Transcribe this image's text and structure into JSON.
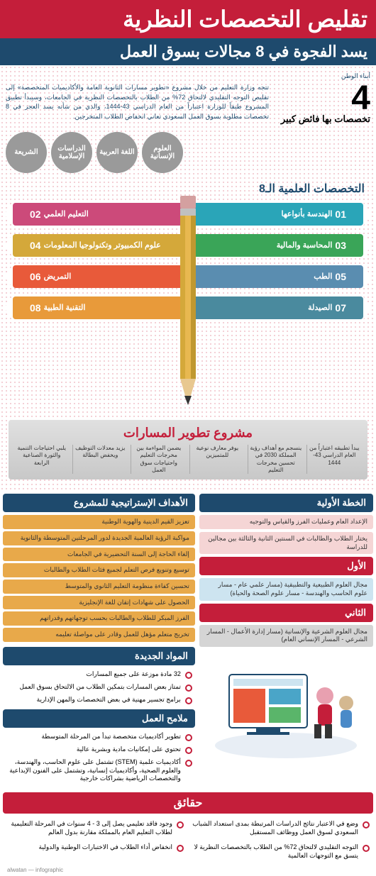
{
  "header": {
    "title_red": "تقليص التخصصات النظرية",
    "title_blue": "يسد الفجوة في 8 مجالات بسوق العمل",
    "source": "أبناء الوطن"
  },
  "intro": {
    "text": "تتجه وزارة التعليم من خلال مشروع «تطوير مسارات الثانوية العامة والأكاديميات المتخصصة» إلى تقليص التوجه التقليدي لالتحاق 72% من الطلاب بالتخصصات النظرية في الجامعات، وسيبدأ تطبيق المشروع طبقاً للوزارة اعتباراً من العام الدراسي 43-1444، والذي من شأنه يسد العجز في 8 تخصصات مطلوبة بسوق العمل السعودي تعاني انخفاض الطلاب المتخرجين."
  },
  "surplus": {
    "number": "4",
    "label": "تخصصات بها فائض كبير",
    "circles": [
      "الشريعة",
      "الدراسات الإسلامية",
      "اللغة العربية",
      "العلوم الإنسانية"
    ]
  },
  "specialties": {
    "title": "التخصصات العلمية الـ8",
    "right": [
      {
        "num": "01",
        "label": "الهندسة بأنواعها",
        "color": "#2aa5b8"
      },
      {
        "num": "03",
        "label": "المحاسبة والمالية",
        "color": "#3aa558"
      },
      {
        "num": "05",
        "label": "الطب",
        "color": "#5a8db0"
      },
      {
        "num": "07",
        "label": "الصيدلة",
        "color": "#4a8a9e"
      }
    ],
    "left": [
      {
        "num": "02",
        "label": "التعليم العلمي",
        "color": "#cc4a7a"
      },
      {
        "num": "04",
        "label": "علوم الكمبيوتر وتكنولوجيا المعلومات",
        "color": "#d4a83a"
      },
      {
        "num": "06",
        "label": "التمريض",
        "color": "#e85a3a"
      },
      {
        "num": "08",
        "label": "التقنية الطبية",
        "color": "#e89a3a"
      }
    ]
  },
  "project": {
    "title": "مشروع تطوير المسارات",
    "cells": [
      "يبدأ تطبيقه اعتباراً من العام الدراسي 43-1444",
      "ينسجم مع أهداف رؤية المملكة 2030 في تحسين مخرجات التعليم",
      "يوفر معارف نوعية للمتميزين",
      "يضمن المواءمة بين مخرجات التعليم واحتياجات سوق العمل",
      "يزيد معدلات التوظيف ويخفض البطالة",
      "يلبي احتياجات التنمية والثورة الصناعية الرابعة"
    ]
  },
  "strategic": {
    "title": "الأهداف الإستراتيجية للمشروع",
    "items": [
      "تعزيز القيم الدينية والهوية الوطنية",
      "مواكبة الرؤية العالمية الجديدة لدور المرحلتين المتوسطة والثانوية",
      "إلغاء الحاجة إلى السنة التحضيرية في الجامعات",
      "توسيع وتنويع فرص التعلم لجميع فئات الطلاب والطالبات",
      "تحسين كفاءة منظومة التعليم الثانوي والمتوسط",
      "الحصول على شهادات إتقان للغة الإنجليزية",
      "الفرز المبكر للطلاب والطالبات بحسب توجهاتهم وقدراتهم",
      "تخريج متعلم مؤهل للعمل وقادر على مواصلة تعليمه"
    ]
  },
  "plan": {
    "title": "الخطة الأولية",
    "items": [
      "الإعداد العام وعمليات الفرز والقياس والتوجيه",
      "يختار الطلاب والطالبات في السنتين الثانية والثالثة بين مجالين للدراسة"
    ],
    "first_title": "الأول",
    "first_text": "مجال العلوم الطبيعية والتطبيقية (مسار علمي عام - مسار علوم الحاسب والهندسة - مسار علوم الصحة والحياة)",
    "second_title": "الثاني",
    "second_text": "مجال العلوم الشرعية والإنسانية (مسار إدارة الأعمال - المسار الشرعي - المسار الإنساني العام)"
  },
  "new_subjects": {
    "title": "المواد الجديدة",
    "items": [
      "32 مادة موزعة على جميع المسارات",
      "تمتاز بعض المسارات بتمكين الطلاب من الالتحاق بسوق العمل",
      "برامج تجسير مهنية في بعض التخصصات والمهن الإدارية"
    ]
  },
  "work_features": {
    "title": "ملامح العمل",
    "items": [
      "تطوير أكاديميات متخصصة تبدأ من المرحلة المتوسطة",
      "تحتوي على إمكانيات مادية وبشرية عالية",
      "أكاديميات علمية (STEM) تشتمل على علوم الحاسب، والهندسة، والعلوم الصحية، وأكاديميات إنسانية، وتشتمل على الفنون الإبداعية والتخصصات الرياضية بشراكات خارجية"
    ]
  },
  "facts": {
    "title": "حقائق",
    "items": [
      "وجود فاقد تعليمي يصل إلى 3 - 4 سنوات في المرحلة التعليمية لطلاب التعليم العام بالمملكة مقارنة بدول العالم",
      "وضع في الاعتبار نتائج الدراسات المرتبطة بمدى استعداد الشباب السعودي لسوق العمل ووظائف المستقبل",
      "انخفاض أداء الطلاب في الاختبارات الوطنية والدولية",
      "التوجه التقليدي لالتحاق 72% من الطلاب بالتخصصات النظرية لا يتسق مع التوجهات العالمية"
    ]
  },
  "footer": "alwatan — infographic"
}
